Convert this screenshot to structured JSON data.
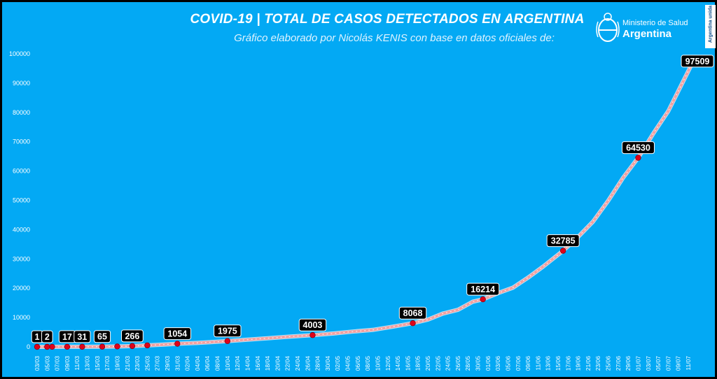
{
  "header": {
    "title": "COVID-19  |  TOTAL DE CASOS DETECTADOS EN ARGENTINA",
    "subtitle": "Gráfico elaborado por Nicolás KENIS con base en datos oficiales de:",
    "ministry": "Ministerio de Salud",
    "country": "Argentina",
    "side_tag": "Argentina unida"
  },
  "colors": {
    "background": "#03a9f4",
    "line": "#f2a0a0",
    "line_glow": "#ffffff",
    "marker": "#e0001a",
    "label_bg": "#000000",
    "label_text": "#ffffff",
    "axis_text": "#ffffff"
  },
  "chart_data": {
    "type": "line",
    "title": "COVID-19 | TOTAL DE CASOS DETECTADOS EN ARGENTINA",
    "xlabel": "",
    "ylabel": "",
    "ylim": [
      0,
      100000
    ],
    "y_ticks": [
      0,
      10000,
      20000,
      30000,
      40000,
      50000,
      60000,
      70000,
      80000,
      90000,
      100000
    ],
    "grid": false,
    "x_tick_labels": [
      "03/03",
      "05/03",
      "07/03",
      "09/03",
      "11/03",
      "13/03",
      "15/03",
      "17/03",
      "19/03",
      "21/03",
      "23/03",
      "25/03",
      "27/03",
      "29/03",
      "31/03",
      "02/04",
      "04/04",
      "06/04",
      "08/04",
      "10/04",
      "12/04",
      "14/04",
      "16/04",
      "18/04",
      "20/04",
      "22/04",
      "24/04",
      "26/04",
      "28/04",
      "30/04",
      "02/05",
      "04/05",
      "06/05",
      "08/05",
      "10/05",
      "12/05",
      "14/05",
      "16/05",
      "18/05",
      "20/05",
      "22/05",
      "24/05",
      "26/05",
      "28/05",
      "30/05",
      "01/06",
      "03/06",
      "05/06",
      "07/06",
      "09/06",
      "11/06",
      "13/06",
      "15/06",
      "17/06",
      "19/06",
      "21/06",
      "23/06",
      "25/06",
      "27/06",
      "29/06",
      "01/07",
      "03/07",
      "05/07",
      "07/07",
      "09/07",
      "11/07"
    ],
    "series": [
      {
        "points": [
          {
            "x": "03/03",
            "y": 1
          },
          {
            "x": "05/03",
            "y": 2
          },
          {
            "x": "06/03",
            "y": 8
          },
          {
            "x": "09/03",
            "y": 17
          },
          {
            "x": "12/03",
            "y": 31
          },
          {
            "x": "16/03",
            "y": 65
          },
          {
            "x": "19/03",
            "y": 128
          },
          {
            "x": "22/03",
            "y": 266
          },
          {
            "x": "25/03",
            "y": 502
          },
          {
            "x": "28/03",
            "y": 745
          },
          {
            "x": "31/03",
            "y": 1054
          },
          {
            "x": "04/04",
            "y": 1353
          },
          {
            "x": "07/04",
            "y": 1628
          },
          {
            "x": "10/04",
            "y": 1975
          },
          {
            "x": "14/04",
            "y": 2443
          },
          {
            "x": "18/04",
            "y": 2930
          },
          {
            "x": "22/04",
            "y": 3435
          },
          {
            "x": "27/04",
            "y": 4003
          },
          {
            "x": "01/05",
            "y": 4532
          },
          {
            "x": "05/05",
            "y": 5208
          },
          {
            "x": "09/05",
            "y": 5776
          },
          {
            "x": "13/05",
            "y": 6879
          },
          {
            "x": "17/05",
            "y": 8068
          },
          {
            "x": "20/05",
            "y": 9283
          },
          {
            "x": "23/05",
            "y": 11353
          },
          {
            "x": "26/05",
            "y": 12628
          },
          {
            "x": "29/05",
            "y": 15419
          },
          {
            "x": "31/05",
            "y": 16214
          },
          {
            "x": "03/06",
            "y": 18319
          },
          {
            "x": "06/06",
            "y": 20197
          },
          {
            "x": "09/06",
            "y": 23620
          },
          {
            "x": "12/06",
            "y": 27373
          },
          {
            "x": "16/06",
            "y": 32785
          },
          {
            "x": "19/06",
            "y": 37510
          },
          {
            "x": "22/06",
            "y": 42785
          },
          {
            "x": "25/06",
            "y": 49851
          },
          {
            "x": "28/06",
            "y": 57744
          },
          {
            "x": "01/07",
            "y": 64530
          },
          {
            "x": "04/07",
            "y": 72786
          },
          {
            "x": "07/07",
            "y": 80447
          },
          {
            "x": "10/07",
            "y": 90693
          },
          {
            "x": "12/07",
            "y": 97509
          }
        ]
      }
    ],
    "labeled_points": [
      {
        "x": "03/03",
        "y": 1,
        "label": "1"
      },
      {
        "x": "05/03",
        "y": 2,
        "label": "2"
      },
      {
        "x": "09/03",
        "y": 17,
        "label": "17"
      },
      {
        "x": "12/03",
        "y": 31,
        "label": "31"
      },
      {
        "x": "16/03",
        "y": 65,
        "label": "65"
      },
      {
        "x": "22/03",
        "y": 266,
        "label": "266"
      },
      {
        "x": "31/03",
        "y": 1054,
        "label": "1054"
      },
      {
        "x": "10/04",
        "y": 1975,
        "label": "1975"
      },
      {
        "x": "27/04",
        "y": 4003,
        "label": "4003"
      },
      {
        "x": "17/05",
        "y": 8068,
        "label": "8068"
      },
      {
        "x": "31/05",
        "y": 16214,
        "label": "16214"
      },
      {
        "x": "16/06",
        "y": 32785,
        "label": "32785"
      },
      {
        "x": "01/07",
        "y": 64530,
        "label": "64530"
      },
      {
        "x": "12/07",
        "y": 97509,
        "label": "97509"
      }
    ],
    "unlabeled_markers": [
      {
        "x": "06/03",
        "y": 8
      },
      {
        "x": "19/03",
        "y": 128
      },
      {
        "x": "25/03",
        "y": 502
      }
    ]
  }
}
